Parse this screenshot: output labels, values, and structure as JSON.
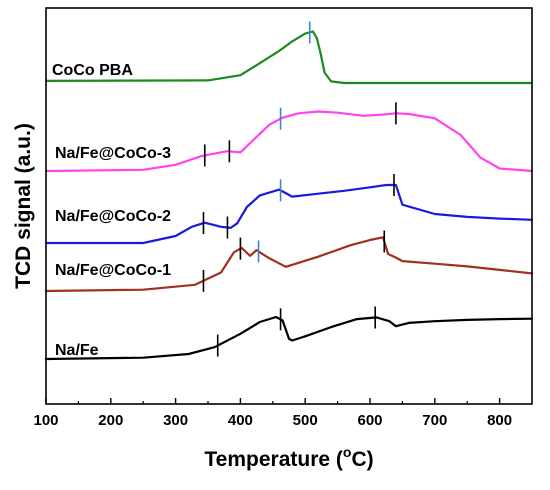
{
  "chart_data": {
    "type": "line",
    "xlabel": "Temperature (°C)",
    "xlabel_parts": {
      "main": "Temperature (",
      "sup": "o",
      "end": "C)"
    },
    "ylabel": "TCD signal (a.u.)",
    "xlim": [
      100,
      850
    ],
    "xticks": [
      100,
      200,
      300,
      400,
      500,
      600,
      700,
      800
    ],
    "yticks_shown": false,
    "grid": false,
    "legend": "none (labels placed beside curves)",
    "series": [
      {
        "name": "CoCo PBA",
        "color": "#1e8a1e",
        "x": [
          100,
          350,
          400,
          430,
          460,
          480,
          500,
          512,
          518,
          524,
          530,
          540,
          560,
          600,
          700,
          850
        ],
        "y": [
          0.04,
          0.05,
          0.15,
          0.38,
          0.62,
          0.8,
          0.95,
          0.99,
          0.86,
          0.55,
          0.2,
          0.03,
          0.0,
          0.0,
          0.0,
          0.0
        ],
        "markers": [
          {
            "x": 507,
            "color": "#3a86d4"
          }
        ]
      },
      {
        "name": "Na/Fe@CoCo-3",
        "color": "#ff44ee",
        "x": [
          100,
          250,
          300,
          340,
          380,
          400,
          420,
          445,
          465,
          490,
          520,
          550,
          590,
          620,
          640,
          660,
          700,
          740,
          770,
          800,
          850
        ],
        "y": [
          0.0,
          0.02,
          0.1,
          0.24,
          0.32,
          0.3,
          0.5,
          0.75,
          0.86,
          0.93,
          0.96,
          0.94,
          0.89,
          0.91,
          0.93,
          0.92,
          0.85,
          0.58,
          0.22,
          0.04,
          0.0
        ],
        "markers": [
          {
            "x": 345,
            "color": "#000000"
          },
          {
            "x": 383,
            "color": "#000000"
          },
          {
            "x": 462,
            "color": "#3a86d4"
          },
          {
            "x": 640,
            "color": "#000000"
          }
        ]
      },
      {
        "name": "Na/Fe@CoCo-2",
        "color": "#1a1adf",
        "x": [
          100,
          250,
          300,
          325,
          345,
          370,
          385,
          395,
          410,
          430,
          460,
          480,
          520,
          560,
          600,
          625,
          640,
          650,
          700,
          750,
          800,
          850
        ],
        "y": [
          0.0,
          0.0,
          0.12,
          0.28,
          0.35,
          0.28,
          0.26,
          0.34,
          0.62,
          0.82,
          0.92,
          0.8,
          0.85,
          0.9,
          0.96,
          1.0,
          1.0,
          0.66,
          0.5,
          0.45,
          0.42,
          0.4
        ],
        "markers": [
          {
            "x": 343,
            "color": "#000000"
          },
          {
            "x": 380,
            "color": "#000000"
          },
          {
            "x": 462,
            "color": "#3a86d4"
          },
          {
            "x": 637,
            "color": "#000000"
          }
        ]
      },
      {
        "name": "Na/Fe@CoCo-1",
        "color": "#a0301f",
        "x": [
          100,
          250,
          330,
          370,
          390,
          402,
          415,
          425,
          432,
          445,
          470,
          520,
          570,
          600,
          620,
          628,
          640,
          650,
          700,
          750,
          800,
          850
        ],
        "y": [
          0.0,
          0.03,
          0.14,
          0.42,
          0.88,
          0.98,
          0.8,
          0.93,
          0.86,
          0.74,
          0.55,
          0.78,
          1.04,
          1.16,
          1.22,
          0.84,
          0.76,
          0.68,
          0.62,
          0.56,
          0.48,
          0.4
        ],
        "markers": [
          {
            "x": 343,
            "color": "#000000"
          },
          {
            "x": 400,
            "color": "#000000"
          },
          {
            "x": 428,
            "color": "#3a86d4"
          },
          {
            "x": 622,
            "color": "#000000"
          }
        ]
      },
      {
        "name": "Na/Fe",
        "color": "#000000",
        "x": [
          100,
          250,
          320,
          360,
          400,
          430,
          455,
          465,
          475,
          480,
          500,
          540,
          580,
          610,
          630,
          640,
          660,
          700,
          750,
          800,
          850
        ],
        "y": [
          0.0,
          0.03,
          0.12,
          0.28,
          0.6,
          0.88,
          1.0,
          0.92,
          0.48,
          0.44,
          0.54,
          0.76,
          0.95,
          0.99,
          0.9,
          0.78,
          0.86,
          0.9,
          0.93,
          0.95,
          0.96
        ],
        "markers": [
          {
            "x": 365,
            "color": "#000000"
          },
          {
            "x": 462,
            "color": "#000000"
          },
          {
            "x": 608,
            "color": "#000000"
          }
        ]
      }
    ]
  }
}
